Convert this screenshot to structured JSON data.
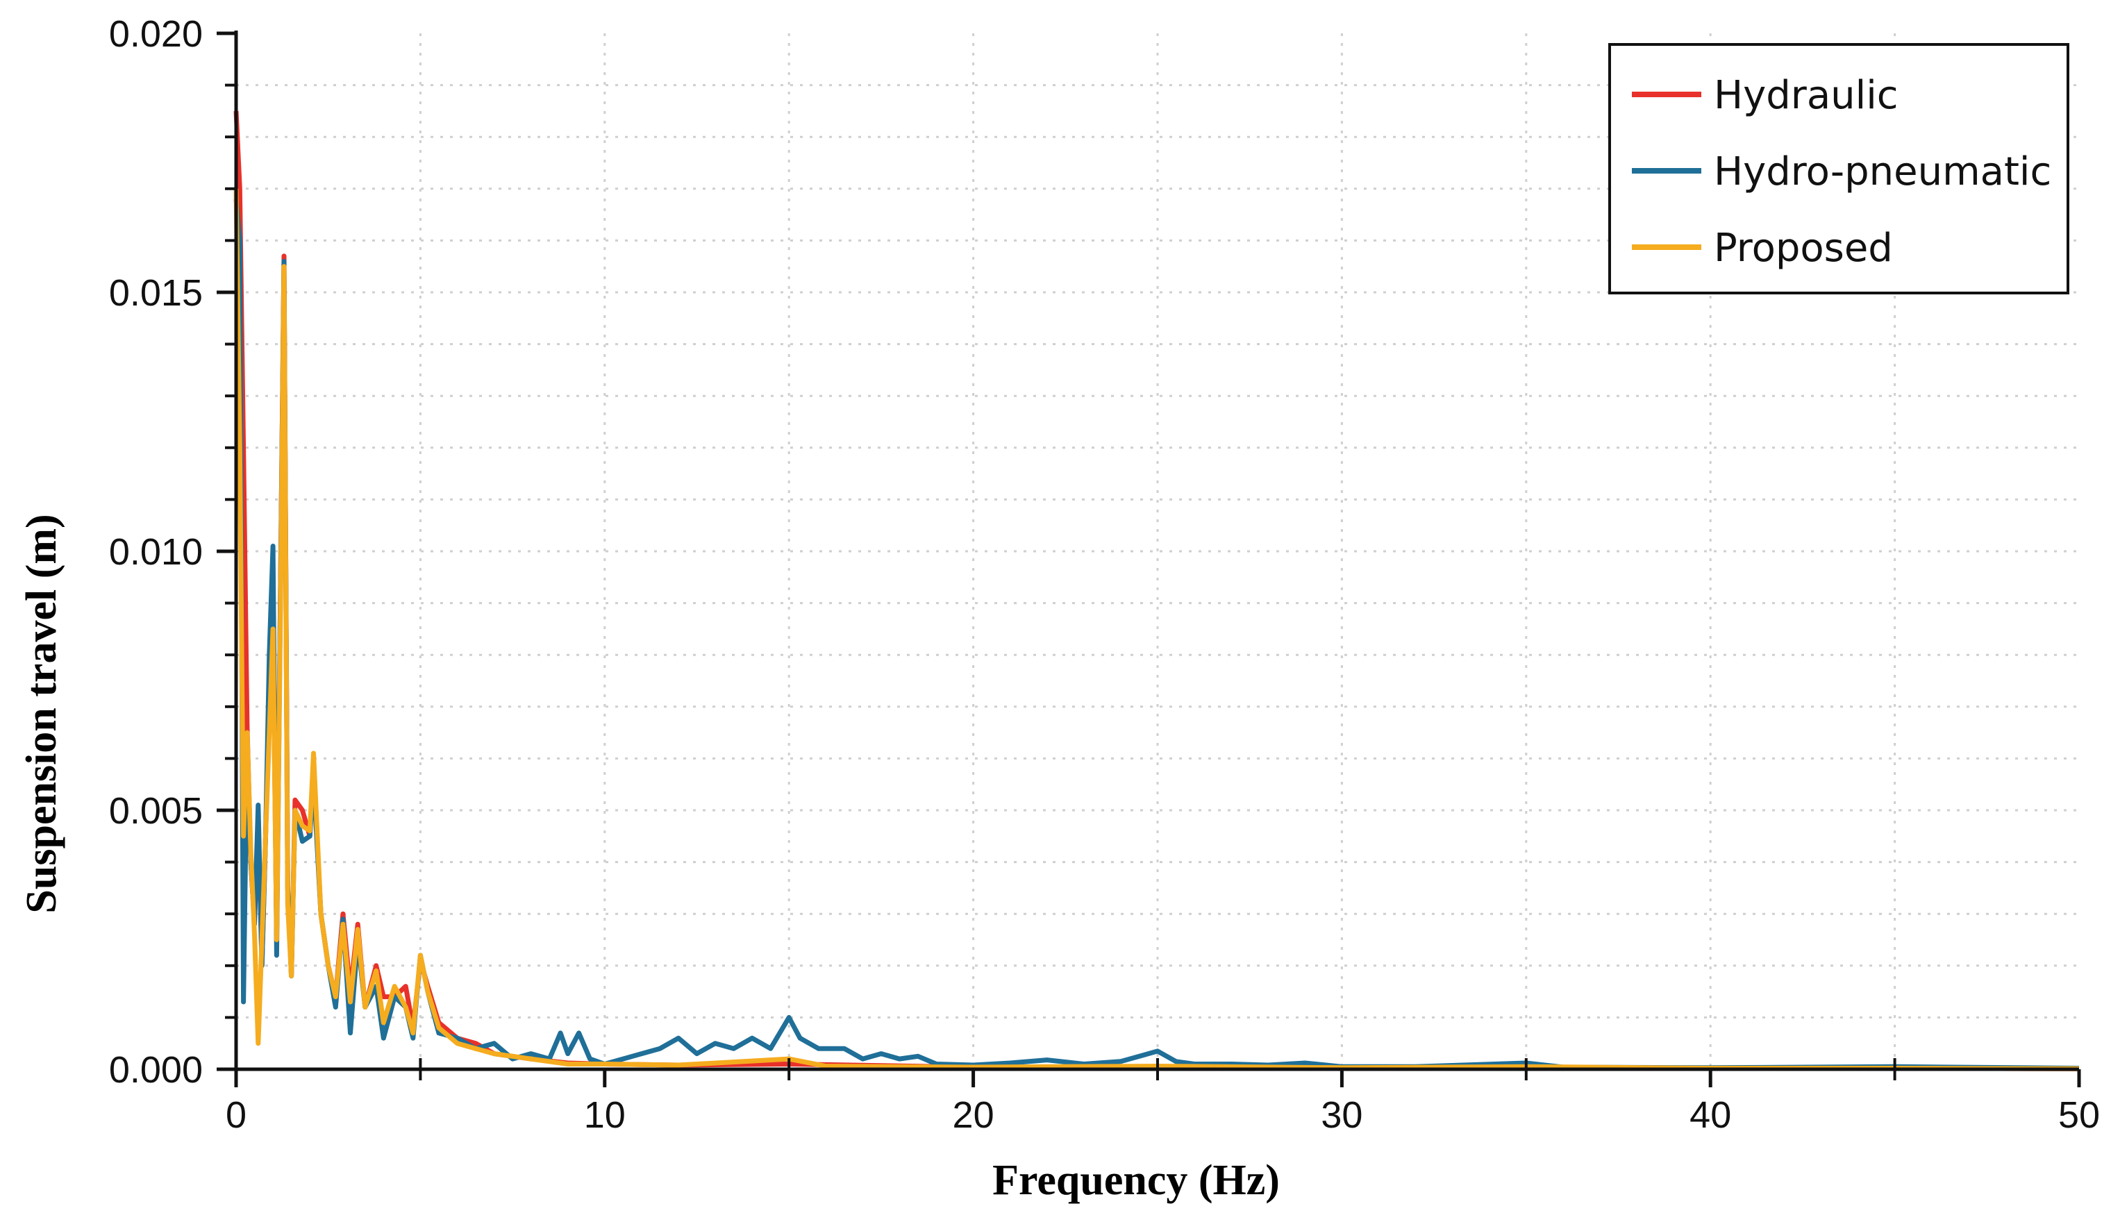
{
  "chart_data": {
    "type": "line",
    "xlabel": "Frequency (Hz)",
    "ylabel": "Suspension travel (m)",
    "xlim": [
      0,
      50
    ],
    "ylim": [
      0,
      0.02
    ],
    "x_ticks": [
      "0",
      "10",
      "20",
      "30",
      "40",
      "50"
    ],
    "y_ticks": [
      "0.000",
      "0.005",
      "0.010",
      "0.015",
      "0.020"
    ],
    "grid": true,
    "legend_position": "top-right",
    "series": [
      {
        "name": "Hydraulic",
        "color": "#e8312a",
        "points": [
          [
            0,
            0.0185
          ],
          [
            0.1,
            0.017
          ],
          [
            0.2,
            0.012
          ],
          [
            0.3,
            0.0066
          ],
          [
            0.4,
            0.004
          ],
          [
            0.5,
            0.0028
          ],
          [
            0.6,
            0.0048
          ],
          [
            0.7,
            0.002
          ],
          [
            0.8,
            0.0045
          ],
          [
            0.9,
            0.0072
          ],
          [
            1.0,
            0.0085
          ],
          [
            1.1,
            0.0026
          ],
          [
            1.2,
            0.009
          ],
          [
            1.3,
            0.0157
          ],
          [
            1.4,
            0.0035
          ],
          [
            1.5,
            0.0018
          ],
          [
            1.6,
            0.0052
          ],
          [
            1.8,
            0.005
          ],
          [
            2.0,
            0.0045
          ],
          [
            2.1,
            0.0058
          ],
          [
            2.3,
            0.003
          ],
          [
            2.5,
            0.002
          ],
          [
            2.7,
            0.0014
          ],
          [
            2.9,
            0.003
          ],
          [
            3.1,
            0.0015
          ],
          [
            3.3,
            0.0028
          ],
          [
            3.5,
            0.0012
          ],
          [
            3.8,
            0.002
          ],
          [
            4.0,
            0.0014
          ],
          [
            4.3,
            0.0014
          ],
          [
            4.6,
            0.0016
          ],
          [
            4.8,
            0.0008
          ],
          [
            5.0,
            0.0021
          ],
          [
            5.2,
            0.0016
          ],
          [
            5.5,
            0.0009
          ],
          [
            6.0,
            0.0006
          ],
          [
            6.5,
            0.0005
          ],
          [
            7.0,
            0.0003
          ],
          [
            8,
            0.0002
          ],
          [
            9,
            0.00012
          ],
          [
            10,
            0.0001
          ],
          [
            12,
            8e-05
          ],
          [
            15,
            0.0001
          ],
          [
            20,
            4e-05
          ],
          [
            25,
            4e-05
          ],
          [
            30,
            3e-05
          ],
          [
            35,
            3e-05
          ],
          [
            40,
            2e-05
          ],
          [
            45,
            2e-05
          ],
          [
            50,
            1e-05
          ]
        ]
      },
      {
        "name": "Hydro-pneumatic",
        "color": "#1f6f98",
        "points": [
          [
            0,
            0.0168
          ],
          [
            0.1,
            0.016
          ],
          [
            0.2,
            0.0013
          ],
          [
            0.3,
            0.0063
          ],
          [
            0.4,
            0.004
          ],
          [
            0.5,
            0.0028
          ],
          [
            0.6,
            0.0051
          ],
          [
            0.7,
            0.002
          ],
          [
            0.8,
            0.0045
          ],
          [
            0.9,
            0.008
          ],
          [
            1.0,
            0.0101
          ],
          [
            1.1,
            0.0022
          ],
          [
            1.2,
            0.009
          ],
          [
            1.3,
            0.0156
          ],
          [
            1.4,
            0.0035
          ],
          [
            1.5,
            0.0018
          ],
          [
            1.6,
            0.005
          ],
          [
            1.8,
            0.0044
          ],
          [
            2.0,
            0.0045
          ],
          [
            2.1,
            0.0056
          ],
          [
            2.3,
            0.003
          ],
          [
            2.5,
            0.002
          ],
          [
            2.7,
            0.0012
          ],
          [
            2.9,
            0.0029
          ],
          [
            3.1,
            0.0007
          ],
          [
            3.3,
            0.0025
          ],
          [
            3.5,
            0.0012
          ],
          [
            3.8,
            0.0016
          ],
          [
            4.0,
            0.0006
          ],
          [
            4.3,
            0.0014
          ],
          [
            4.6,
            0.0012
          ],
          [
            4.8,
            0.0006
          ],
          [
            5.0,
            0.0022
          ],
          [
            5.2,
            0.0015
          ],
          [
            5.5,
            0.0007
          ],
          [
            6.0,
            0.0006
          ],
          [
            6.5,
            0.0004
          ],
          [
            7.0,
            0.0005
          ],
          [
            7.5,
            0.0002
          ],
          [
            8.0,
            0.0003
          ],
          [
            8.5,
            0.0002
          ],
          [
            8.8,
            0.0007
          ],
          [
            9.0,
            0.0003
          ],
          [
            9.3,
            0.0007
          ],
          [
            9.6,
            0.0002
          ],
          [
            10,
            0.0001
          ],
          [
            10.5,
            0.0002
          ],
          [
            11,
            0.0003
          ],
          [
            11.5,
            0.0004
          ],
          [
            12,
            0.0006
          ],
          [
            12.5,
            0.0003
          ],
          [
            13,
            0.0005
          ],
          [
            13.5,
            0.0004
          ],
          [
            14,
            0.0006
          ],
          [
            14.5,
            0.0004
          ],
          [
            15,
            0.001
          ],
          [
            15.3,
            0.0006
          ],
          [
            15.8,
            0.0004
          ],
          [
            16.5,
            0.0004
          ],
          [
            17,
            0.0002
          ],
          [
            17.5,
            0.0003
          ],
          [
            18,
            0.0002
          ],
          [
            18.5,
            0.00025
          ],
          [
            19,
            0.0001
          ],
          [
            20,
            8e-05
          ],
          [
            21,
            0.00012
          ],
          [
            22,
            0.00018
          ],
          [
            23,
            0.0001
          ],
          [
            24,
            0.00015
          ],
          [
            25,
            0.00035
          ],
          [
            25.5,
            0.00015
          ],
          [
            26,
            0.0001
          ],
          [
            27,
            0.0001
          ],
          [
            28,
            8e-05
          ],
          [
            29,
            0.00012
          ],
          [
            30,
            5e-05
          ],
          [
            32,
            5e-05
          ],
          [
            35,
            0.00012
          ],
          [
            36,
            4e-05
          ],
          [
            40,
            3e-05
          ],
          [
            45,
            5e-05
          ],
          [
            50,
            2e-05
          ]
        ]
      },
      {
        "name": "Proposed",
        "color": "#f5ac1e",
        "points": [
          [
            0,
            0.017
          ],
          [
            0.1,
            0.012
          ],
          [
            0.2,
            0.0045
          ],
          [
            0.3,
            0.0065
          ],
          [
            0.4,
            0.0042
          ],
          [
            0.5,
            0.0026
          ],
          [
            0.6,
            0.0005
          ],
          [
            0.7,
            0.0025
          ],
          [
            0.8,
            0.0045
          ],
          [
            0.9,
            0.0065
          ],
          [
            1.0,
            0.0085
          ],
          [
            1.1,
            0.0025
          ],
          [
            1.2,
            0.0086
          ],
          [
            1.3,
            0.0155
          ],
          [
            1.4,
            0.0032
          ],
          [
            1.5,
            0.0018
          ],
          [
            1.6,
            0.005
          ],
          [
            1.8,
            0.0047
          ],
          [
            2.0,
            0.0046
          ],
          [
            2.1,
            0.0061
          ],
          [
            2.3,
            0.003
          ],
          [
            2.5,
            0.002
          ],
          [
            2.7,
            0.0014
          ],
          [
            2.9,
            0.0028
          ],
          [
            3.1,
            0.0013
          ],
          [
            3.3,
            0.0027
          ],
          [
            3.5,
            0.0012
          ],
          [
            3.8,
            0.0019
          ],
          [
            4.0,
            0.0009
          ],
          [
            4.3,
            0.0016
          ],
          [
            4.6,
            0.0012
          ],
          [
            4.8,
            0.0007
          ],
          [
            5.0,
            0.0022
          ],
          [
            5.2,
            0.0015
          ],
          [
            5.5,
            0.0008
          ],
          [
            6.0,
            0.0005
          ],
          [
            6.5,
            0.0004
          ],
          [
            7.0,
            0.0003
          ],
          [
            8,
            0.0002
          ],
          [
            9,
            0.0001
          ],
          [
            10,
            0.0001
          ],
          [
            12,
            8e-05
          ],
          [
            15,
            0.0002
          ],
          [
            16,
            6e-05
          ],
          [
            20,
            4e-05
          ],
          [
            25,
            6e-05
          ],
          [
            30,
            3e-05
          ],
          [
            35,
            5e-05
          ],
          [
            40,
            2e-05
          ],
          [
            45,
            2e-05
          ],
          [
            50,
            1e-05
          ]
        ]
      }
    ]
  }
}
